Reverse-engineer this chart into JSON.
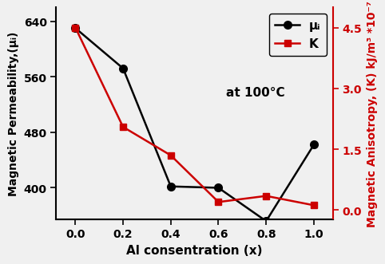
{
  "x": [
    0.0,
    0.2,
    0.4,
    0.6,
    0.8,
    1.0
  ],
  "mu_i": [
    630,
    572,
    402,
    400,
    352,
    462
  ],
  "K": [
    4.5,
    2.05,
    1.35,
    0.2,
    0.35,
    0.12
  ],
  "xlabel": "Al consentration (x)",
  "ylabel_left": "Magnetic Permeability,(μᵢ)",
  "ylabel_right": "Magnetic Anisotropy, (K) kJ/m³ *10⁻⁷",
  "annotation": "at 100°C",
  "legend_mu": "μᵢ",
  "legend_K": "K",
  "ylim_left": [
    355,
    660
  ],
  "ylim_right": [
    -0.22,
    5.0
  ],
  "yticks_left": [
    400,
    480,
    560,
    640
  ],
  "yticks_right": [
    0.0,
    1.5,
    3.0,
    4.5
  ],
  "xticks": [
    0.0,
    0.2,
    0.4,
    0.6,
    0.8,
    1.0
  ],
  "color_mu": "#000000",
  "color_K": "#cc0000",
  "linewidth": 1.8,
  "markersize_circle": 7,
  "markersize_square": 6,
  "bg_color": "#f0f0f0"
}
